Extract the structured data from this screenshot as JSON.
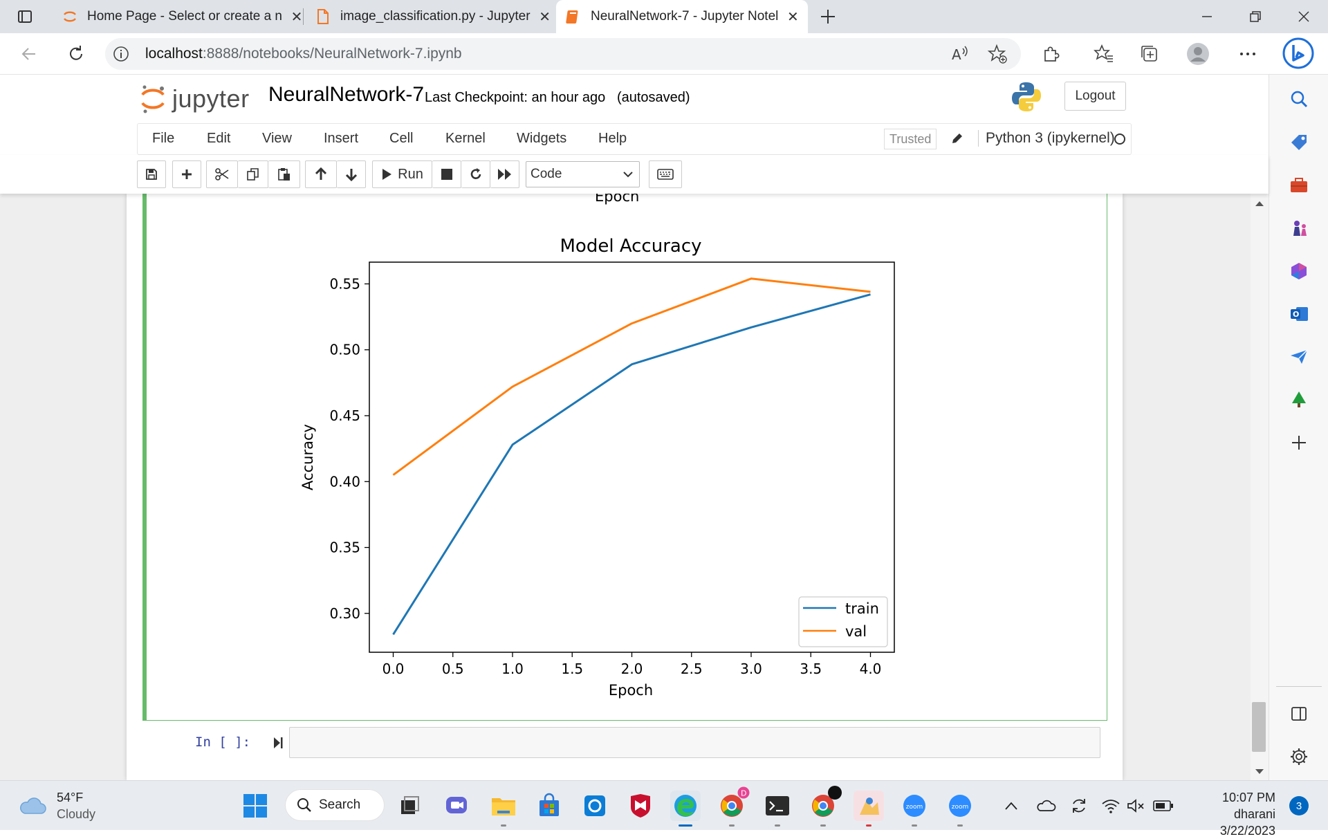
{
  "browser": {
    "tabs": [
      {
        "title": "Home Page - Select or create a n",
        "active": false
      },
      {
        "title": "image_classification.py - Jupyter",
        "active": false
      },
      {
        "title": "NeuralNetwork-7 - Jupyter Notel",
        "active": true
      }
    ],
    "url_host": "localhost",
    "url_rest": ":8888/notebooks/NeuralNetwork-7.ipynb"
  },
  "jupyter": {
    "logo_word": "jupyter",
    "notebook_name": "NeuralNetwork-7",
    "checkpoint": "Last Checkpoint: an hour ago",
    "autosave": "(autosaved)",
    "logout_label": "Logout",
    "menu": [
      "File",
      "Edit",
      "View",
      "Insert",
      "Cell",
      "Kernel",
      "Widgets",
      "Help"
    ],
    "trusted_label": "Trusted",
    "kernel_name": "Python 3 (ipykernel)",
    "toolbar": {
      "run_label": "Run",
      "cell_type": "Code"
    },
    "prev_plot_xlabel": "Epoch",
    "next_cell_prompt": "In [ ]:"
  },
  "chart_data": {
    "type": "line",
    "title": "Model Accuracy",
    "xlabel": "Epoch",
    "ylabel": "Accuracy",
    "x": [
      0,
      1,
      2,
      3,
      4
    ],
    "xticks": [
      "0.0",
      "0.5",
      "1.0",
      "1.5",
      "2.0",
      "2.5",
      "3.0",
      "3.5",
      "4.0"
    ],
    "yticks": [
      "0.30",
      "0.35",
      "0.40",
      "0.45",
      "0.50",
      "0.55"
    ],
    "xlim": [
      -0.2,
      4.2
    ],
    "ylim": [
      0.2705,
      0.5665
    ],
    "legend_position": "lower-right",
    "grid": false,
    "series": [
      {
        "name": "train",
        "color": "#1f77b4",
        "values": [
          0.284,
          0.428,
          0.489,
          0.517,
          0.542
        ]
      },
      {
        "name": "val",
        "color": "#ff7f0e",
        "values": [
          0.405,
          0.472,
          0.52,
          0.554,
          0.544
        ]
      }
    ]
  },
  "taskbar": {
    "temperature": "54°F",
    "condition": "Cloudy",
    "search_label": "Search",
    "time": "10:07 PM",
    "user": "dharani",
    "date": "3/22/2023",
    "notification_count": "3"
  }
}
